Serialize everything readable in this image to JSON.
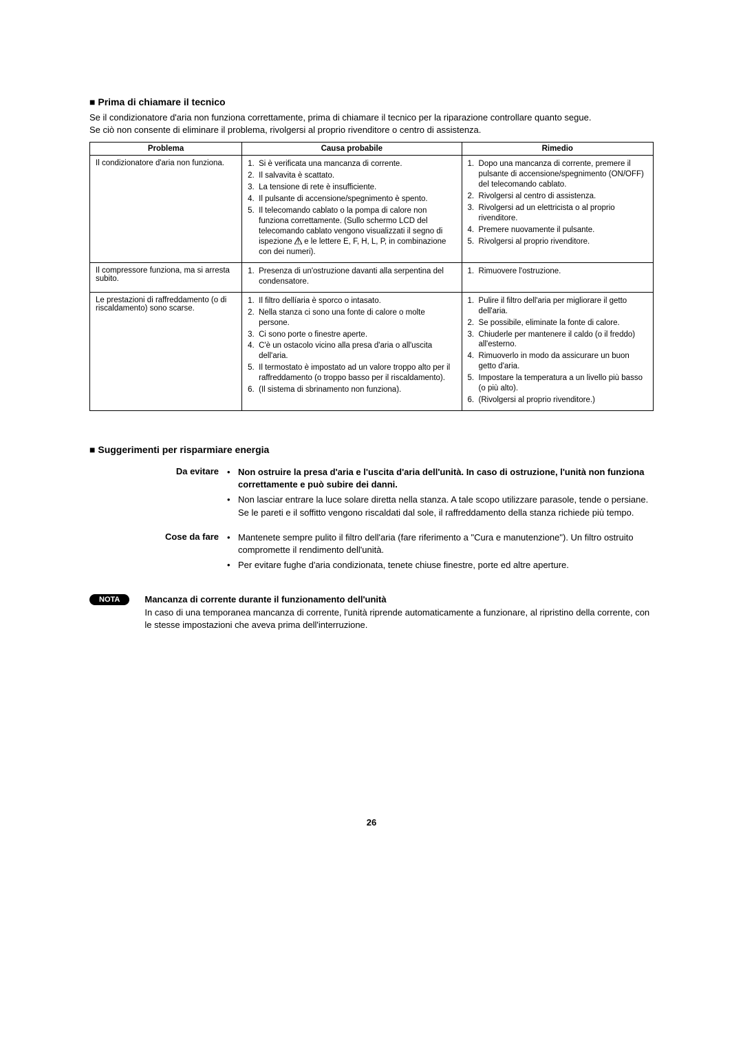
{
  "heading1_marker": "■",
  "heading1": "Prima di chiamare il tecnico",
  "intro1": "Se il condizionatore d'aria non funziona correttamente, prima di chiamare il tecnico per la riparazione controllare quanto segue.",
  "intro2": "Se ciò non consente di eliminare il problema, rivolgersi al proprio rivenditore o centro di assistenza.",
  "table": {
    "headers": {
      "c1": "Problema",
      "c2": "Causa probabile",
      "c3": "Rimedio"
    },
    "rows": [
      {
        "problema": "Il condizionatore d'aria non funziona.",
        "cause": [
          "Si è verificata una mancanza di corrente.",
          "Il salvavita è scattato.",
          "La tensione di rete è insufficiente.",
          "Il pulsante di accensione/spegnimento è spento.",
          "Il telecomando cablato o la pompa di calore non funziona correttamente. (Sullo schermo LCD del telecomando cablato vengono visualizzati il segno di ispezione ⚠ e le lettere E, F, H, L, P, in combinazione con dei numeri)."
        ],
        "rimedi": [
          "Dopo una mancanza di corrente, premere il pulsante di accensione/spegnimento (ON/OFF) del telecomando cablato.",
          "Rivolgersi al centro di assistenza.",
          "Rivolgersi ad un elettricista o al proprio rivenditore.",
          "Premere nuovamente il pulsante.",
          "Rivolgersi al proprio rivenditore."
        ]
      },
      {
        "problema": "Il compressore funziona, ma si arresta subito.",
        "cause": [
          "Presenza di un'ostruzione davanti alla serpentina del condensatore."
        ],
        "rimedi": [
          "Rimuovere l'ostruzione."
        ]
      },
      {
        "problema": "Le prestazioni di raffreddamento (o di riscaldamento) sono scarse.",
        "cause": [
          "Il filtro dellíaria è sporco o intasato.",
          "Nella stanza ci sono una fonte di calore o molte persone.",
          "Ci sono porte o finestre aperte.",
          "C'è un ostacolo vicino alla presa d'aria o all'uscita dell'aria.",
          "Il termostato è impostato ad un valore troppo alto per il raffreddamento (o troppo basso per il riscaldamento).",
          "(Il sistema di sbrinamento non funziona)."
        ],
        "rimedi": [
          "Pulire il filtro dell'aria per migliorare il getto dell'aria.",
          "Se possibile, eliminate la fonte di calore.",
          "Chiuderle per mantenere il caldo (o il freddo) all'esterno.",
          "Rimuoverlo in modo da assicurare un buon getto d'aria.",
          "Impostare la temperatura a un livello più basso (o più alto).",
          "(Rivolgersi al proprio rivenditore.)"
        ]
      }
    ]
  },
  "heading2_marker": "■",
  "heading2": "Suggerimenti per risparmiare energia",
  "tips": [
    {
      "label": "Da evitare",
      "items": [
        {
          "bold": true,
          "text": "Non ostruire la presa d'aria e l'uscita d'aria dell'unità. In caso di ostruzione, l'unità non funziona correttamente e può subire dei danni."
        },
        {
          "bold": false,
          "text": "Non lasciar entrare la luce solare diretta nella stanza. A tale scopo utilizzare parasole, tende o persiane. Se le pareti e il soffitto vengono riscaldati dal sole, il raffreddamento della stanza richiede più tempo."
        }
      ]
    },
    {
      "label": "Cose da fare",
      "items": [
        {
          "bold": false,
          "text": "Mantenete sempre pulito il filtro dell'aria (fare riferimento a \"Cura e manutenzione\"). Un filtro ostruito compromette il rendimento dell'unità."
        },
        {
          "bold": false,
          "text": "Per evitare fughe d'aria condizionata, tenete chiuse finestre, porte ed altre aperture."
        }
      ]
    }
  ],
  "nota": {
    "badge": "NOTA",
    "title": "Mancanza di corrente durante il funzionamento dell'unità",
    "text": "In caso di una temporanea mancanza di corrente, l'unità riprende automaticamente a funzionare, al ripristino della corrente, con le stesse impostazioni che aveva prima dell'interruzione."
  },
  "page_number": "26",
  "colors": {
    "text": "#000000",
    "background": "#ffffff",
    "badge_bg": "#000000",
    "badge_text": "#ffffff",
    "border": "#000000"
  },
  "fonts": {
    "body_size": 13,
    "table_size": 11.5,
    "heading_size": 14
  }
}
